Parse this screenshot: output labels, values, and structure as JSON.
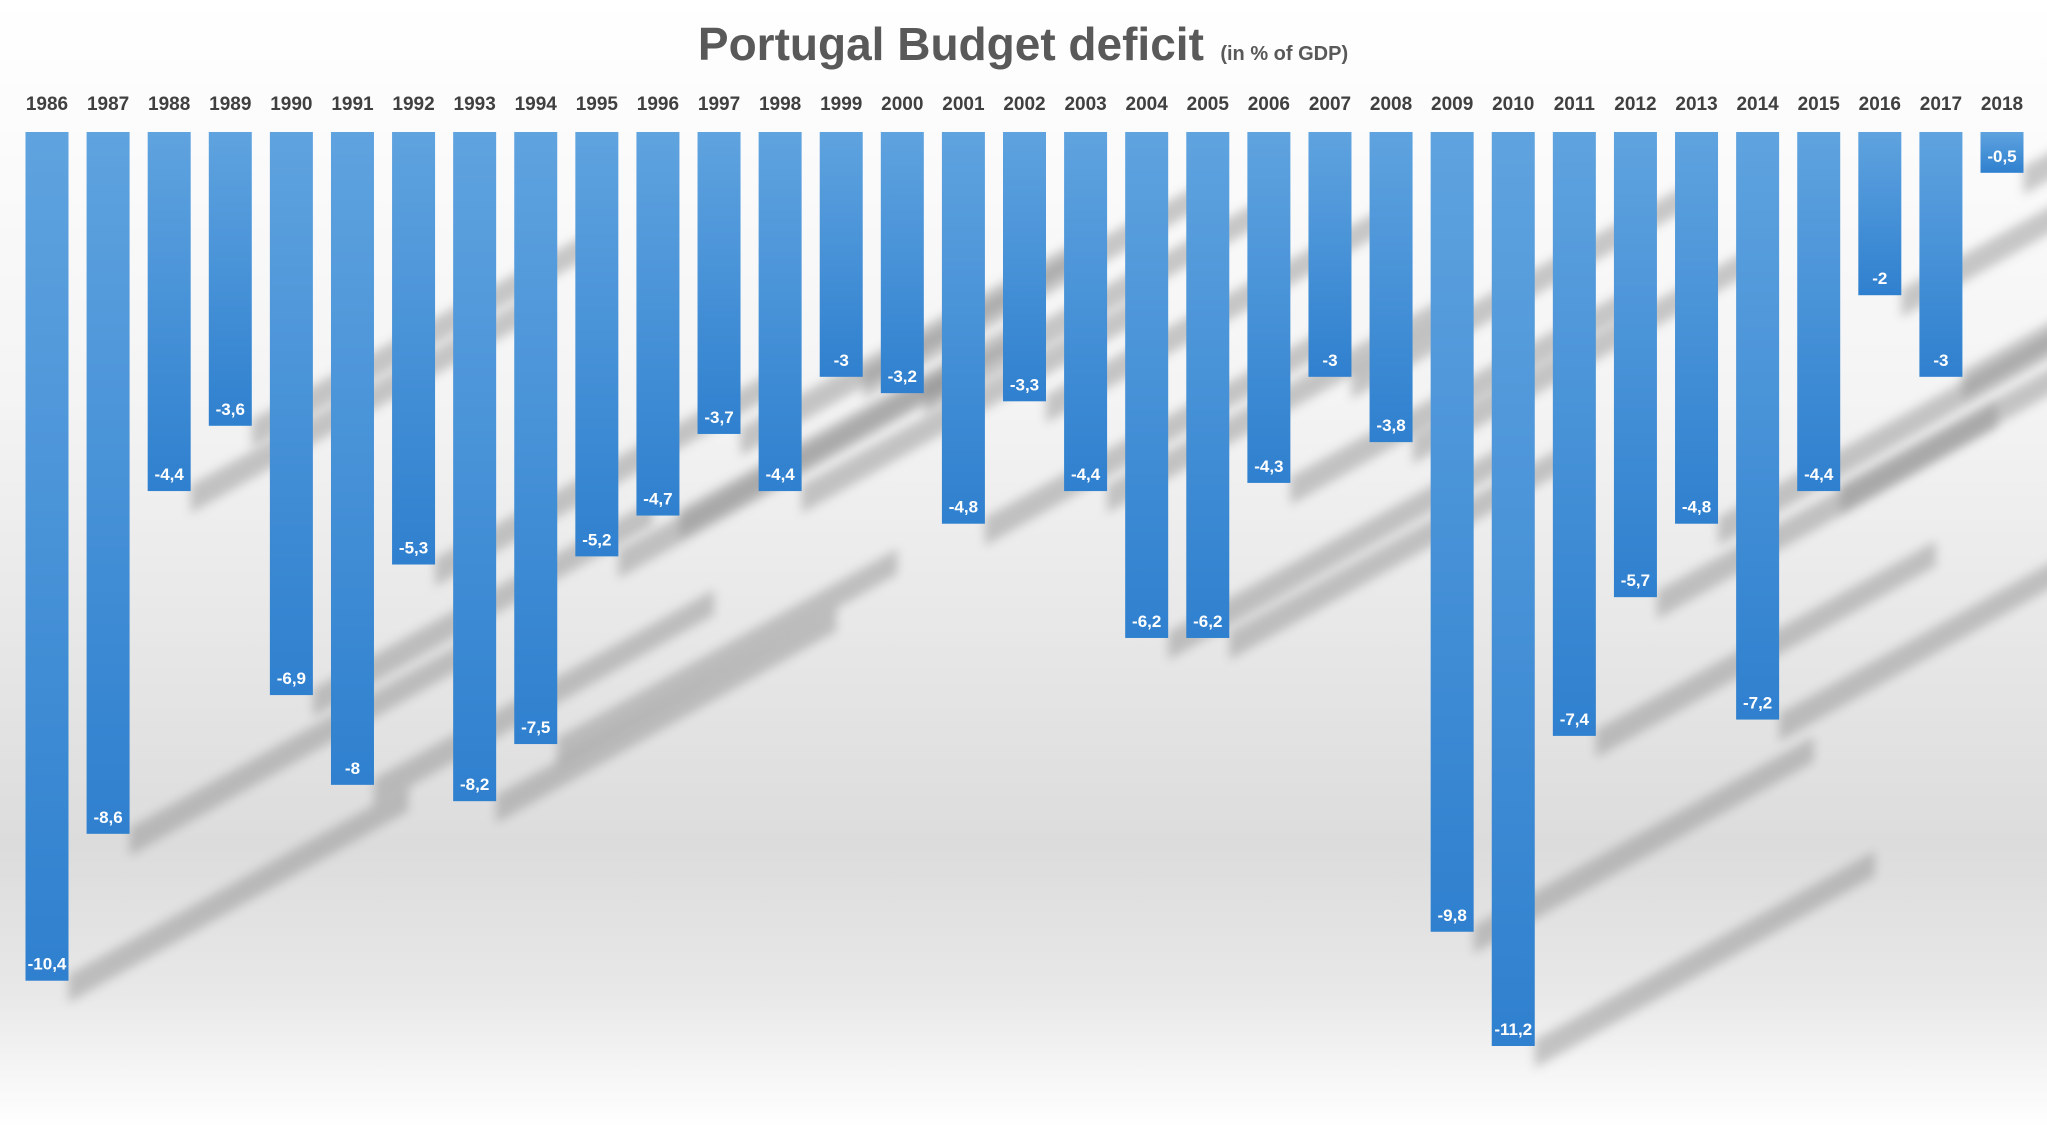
{
  "chart_data": {
    "type": "bar",
    "title": "Portugal Budget deficit",
    "subtitle": "(in % of GDP)",
    "xlabel": "",
    "ylabel": "",
    "categories": [
      "1986",
      "1987",
      "1988",
      "1989",
      "1990",
      "1991",
      "1992",
      "1993",
      "1994",
      "1995",
      "1996",
      "1997",
      "1998",
      "1999",
      "2000",
      "2001",
      "2002",
      "2003",
      "2004",
      "2005",
      "2006",
      "2007",
      "2008",
      "2009",
      "2010",
      "2011",
      "2012",
      "2013",
      "2014",
      "2015",
      "2016",
      "2017",
      "2018"
    ],
    "values": [
      -10.4,
      -8.6,
      -4.4,
      -3.6,
      -6.9,
      -8,
      -5.3,
      -8.2,
      -7.5,
      -5.2,
      -4.7,
      -3.7,
      -4.4,
      -3,
      -3.2,
      -4.8,
      -3.3,
      -4.4,
      -6.2,
      -6.2,
      -4.3,
      -3,
      -3.8,
      -9.8,
      -11.2,
      -7.4,
      -5.7,
      -4.8,
      -7.2,
      -4.4,
      -2,
      -3,
      -0.5
    ],
    "data_labels": [
      "-10,4",
      "-8,6",
      "-4,4",
      "-3,6",
      "-6,9",
      "-8",
      "-5,3",
      "-8,2",
      "-7,5",
      "-5,2",
      "-4,7",
      "-3,7",
      "-4,4",
      "-3",
      "-3,2",
      "-4,8",
      "-3,3",
      "-4,4",
      "-6,2",
      "-6,2",
      "-4,3",
      "-3",
      "-3,8",
      "-9,8",
      "-11,2",
      "-7,4",
      "-5,7",
      "-4,8",
      "-7,2",
      "-4,4",
      "-2",
      "-3",
      "-0,5"
    ],
    "ylim": [
      -11.2,
      0
    ],
    "grid": false,
    "legend": "none",
    "category_axis": "top",
    "bar_color": "#4a90d6"
  }
}
